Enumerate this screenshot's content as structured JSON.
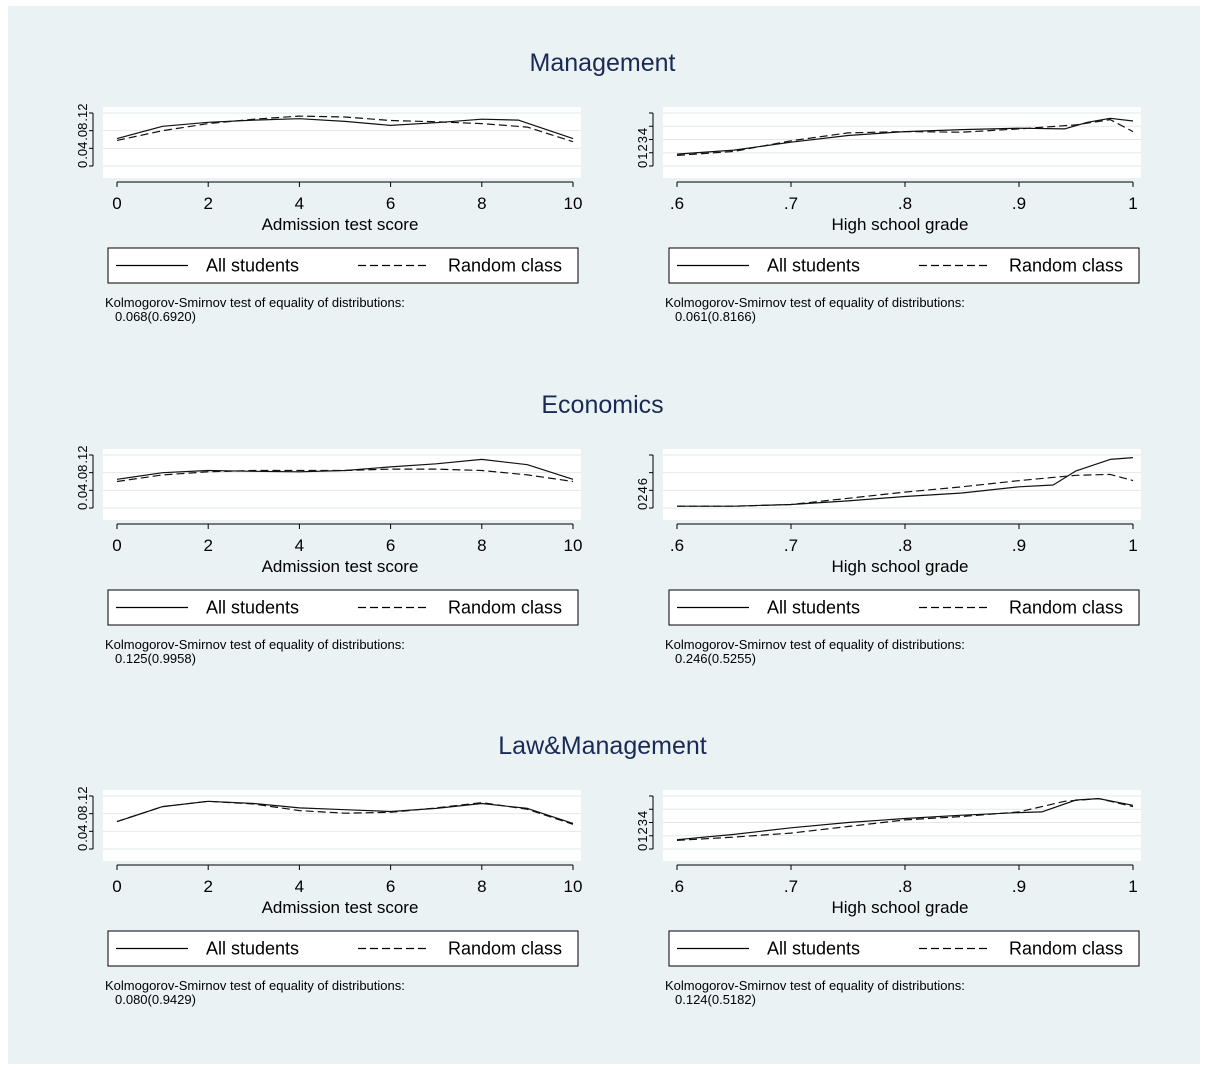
{
  "sections": [
    {
      "title": "Management",
      "panels": [
        {
          "xlabel": "Admission test score",
          "xticks": [
            "0",
            "2",
            "4",
            "6",
            "8",
            "10"
          ],
          "yticks": [
            "0",
            ".04",
            ".08",
            ".12"
          ],
          "legend": [
            "All students",
            "Random class"
          ],
          "ks_label": "Kolmogorov-Smirnov test of equality of distributions:",
          "ks_value": "0.068(0.6920)"
        },
        {
          "xlabel": "High school grade",
          "xticks": [
            ".6",
            ".7",
            ".8",
            ".9",
            "1"
          ],
          "yticks": [
            "0",
            "1",
            "2",
            "3",
            "4"
          ],
          "legend": [
            "All students",
            "Random class"
          ],
          "ks_label": "Kolmogorov-Smirnov test of equality of distributions:",
          "ks_value": "0.061(0.8166)"
        }
      ]
    },
    {
      "title": "Economics",
      "panels": [
        {
          "xlabel": "Admission test score",
          "xticks": [
            "0",
            "2",
            "4",
            "6",
            "8",
            "10"
          ],
          "yticks": [
            "0",
            ".04",
            ".08",
            ".12"
          ],
          "legend": [
            "All students",
            "Random class"
          ],
          "ks_label": "Kolmogorov-Smirnov test of equality of distributions:",
          "ks_value": "0.125(0.9958)"
        },
        {
          "xlabel": "High school grade",
          "xticks": [
            ".6",
            ".7",
            ".8",
            ".9",
            "1"
          ],
          "yticks": [
            "0",
            "2",
            "4",
            "6"
          ],
          "legend": [
            "All students",
            "Random class"
          ],
          "ks_label": "Kolmogorov-Smirnov test of equality of distributions:",
          "ks_value": "0.246(0.5255)"
        }
      ]
    },
    {
      "title": "Law&Management",
      "panels": [
        {
          "xlabel": "Admission test score",
          "xticks": [
            "0",
            "2",
            "4",
            "6",
            "8",
            "10"
          ],
          "yticks": [
            "0",
            ".04",
            ".08",
            ".12"
          ],
          "legend": [
            "All students",
            "Random class"
          ],
          "ks_label": "Kolmogorov-Smirnov test of equality of distributions:",
          "ks_value": "0.080(0.9429)"
        },
        {
          "xlabel": "High school grade",
          "xticks": [
            ".6",
            ".7",
            ".8",
            ".9",
            "1"
          ],
          "yticks": [
            "0",
            "1",
            "2",
            "3",
            "4"
          ],
          "legend": [
            "All students",
            "Random class"
          ],
          "ks_label": "Kolmogorov-Smirnov test of equality of distributions:",
          "ks_value": "0.124(0.5182)"
        }
      ]
    }
  ],
  "chart_data": [
    {
      "type": "line",
      "section": "Management",
      "xlabel": "Admission test score",
      "xlim": [
        0,
        10
      ],
      "ylim": [
        0,
        0.12
      ],
      "grid": true,
      "legend": "bottom",
      "series": [
        {
          "name": "All students",
          "style": "solid",
          "x": [
            0,
            1,
            2,
            3,
            4,
            5,
            6,
            7,
            8,
            8.8,
            10
          ],
          "y": [
            0.062,
            0.09,
            0.099,
            0.104,
            0.107,
            0.101,
            0.092,
            0.098,
            0.106,
            0.104,
            0.062
          ]
        },
        {
          "name": "Random class",
          "style": "dashed",
          "x": [
            0,
            1,
            2,
            3,
            4,
            5,
            6,
            7,
            8,
            9,
            10
          ],
          "y": [
            0.058,
            0.08,
            0.096,
            0.106,
            0.113,
            0.111,
            0.103,
            0.1,
            0.096,
            0.088,
            0.055
          ]
        }
      ]
    },
    {
      "type": "line",
      "section": "Management",
      "xlabel": "High school grade",
      "xlim": [
        0.6,
        1
      ],
      "ylim": [
        0,
        4
      ],
      "grid": true,
      "legend": "bottom",
      "series": [
        {
          "name": "All students",
          "style": "solid",
          "x": [
            0.6,
            0.65,
            0.7,
            0.75,
            0.8,
            0.85,
            0.9,
            0.94,
            0.96,
            0.98,
            1.0
          ],
          "y": [
            0.9,
            1.2,
            1.8,
            2.3,
            2.6,
            2.75,
            2.85,
            2.8,
            3.3,
            3.6,
            3.4
          ]
        },
        {
          "name": "Random class",
          "style": "dashed",
          "x": [
            0.6,
            0.65,
            0.7,
            0.75,
            0.8,
            0.85,
            0.9,
            0.95,
            0.98,
            1.0
          ],
          "y": [
            0.8,
            1.1,
            1.9,
            2.5,
            2.6,
            2.55,
            2.8,
            3.1,
            3.5,
            2.6
          ]
        }
      ]
    },
    {
      "type": "line",
      "section": "Economics",
      "xlabel": "Admission test score",
      "xlim": [
        0,
        10
      ],
      "ylim": [
        0,
        0.12
      ],
      "grid": true,
      "legend": "bottom",
      "series": [
        {
          "name": "All students",
          "style": "solid",
          "x": [
            0,
            1,
            2,
            3,
            4,
            5,
            6,
            7,
            8,
            9,
            10
          ],
          "y": [
            0.065,
            0.08,
            0.085,
            0.083,
            0.082,
            0.085,
            0.093,
            0.1,
            0.11,
            0.098,
            0.065
          ]
        },
        {
          "name": "Random class",
          "style": "dashed",
          "x": [
            0,
            1,
            2,
            3,
            4,
            5,
            6,
            7,
            8,
            9,
            10
          ],
          "y": [
            0.06,
            0.075,
            0.082,
            0.085,
            0.085,
            0.085,
            0.088,
            0.088,
            0.085,
            0.075,
            0.06
          ]
        }
      ]
    },
    {
      "type": "line",
      "section": "Economics",
      "xlabel": "High school grade",
      "xlim": [
        0.6,
        1
      ],
      "ylim": [
        0,
        6
      ],
      "grid": true,
      "legend": "bottom",
      "series": [
        {
          "name": "All students",
          "style": "solid",
          "x": [
            0.6,
            0.65,
            0.7,
            0.75,
            0.8,
            0.85,
            0.9,
            0.93,
            0.95,
            0.98,
            1.0
          ],
          "y": [
            0.2,
            0.2,
            0.4,
            0.8,
            1.3,
            1.7,
            2.4,
            2.6,
            4.2,
            5.5,
            5.7
          ]
        },
        {
          "name": "Random class",
          "style": "dashed",
          "x": [
            0.6,
            0.65,
            0.7,
            0.75,
            0.8,
            0.85,
            0.9,
            0.95,
            0.98,
            1.0
          ],
          "y": [
            0.2,
            0.2,
            0.4,
            1.1,
            1.8,
            2.4,
            3.1,
            3.7,
            3.8,
            3.1
          ]
        }
      ]
    },
    {
      "type": "line",
      "section": "Law&Management",
      "xlabel": "Admission test score",
      "xlim": [
        0,
        10
      ],
      "ylim": [
        0,
        0.12
      ],
      "grid": true,
      "legend": "bottom",
      "series": [
        {
          "name": "All students",
          "style": "solid",
          "x": [
            0,
            1,
            2,
            3,
            4,
            5,
            6,
            7,
            8,
            9,
            10
          ],
          "y": [
            0.062,
            0.096,
            0.108,
            0.103,
            0.093,
            0.089,
            0.085,
            0.092,
            0.103,
            0.092,
            0.058
          ]
        },
        {
          "name": "Random class",
          "style": "dashed",
          "x": [
            0,
            1,
            2,
            3,
            4,
            5,
            6,
            7,
            8,
            9,
            10
          ],
          "y": [
            0.062,
            0.096,
            0.108,
            0.102,
            0.087,
            0.081,
            0.083,
            0.093,
            0.105,
            0.09,
            0.056
          ]
        }
      ]
    },
    {
      "type": "line",
      "section": "Law&Management",
      "xlabel": "High school grade",
      "xlim": [
        0.6,
        1
      ],
      "ylim": [
        0,
        4
      ],
      "grid": true,
      "legend": "bottom",
      "series": [
        {
          "name": "All students",
          "style": "solid",
          "x": [
            0.6,
            0.65,
            0.7,
            0.75,
            0.8,
            0.85,
            0.9,
            0.92,
            0.95,
            0.97,
            1.0
          ],
          "y": [
            0.7,
            1.1,
            1.6,
            2.0,
            2.3,
            2.55,
            2.75,
            2.8,
            3.7,
            3.8,
            3.3
          ]
        },
        {
          "name": "Random class",
          "style": "dashed",
          "x": [
            0.6,
            0.65,
            0.7,
            0.75,
            0.8,
            0.85,
            0.9,
            0.94,
            0.97,
            1.0
          ],
          "y": [
            0.65,
            0.9,
            1.2,
            1.7,
            2.2,
            2.45,
            2.8,
            3.6,
            3.8,
            3.2
          ]
        }
      ]
    }
  ]
}
